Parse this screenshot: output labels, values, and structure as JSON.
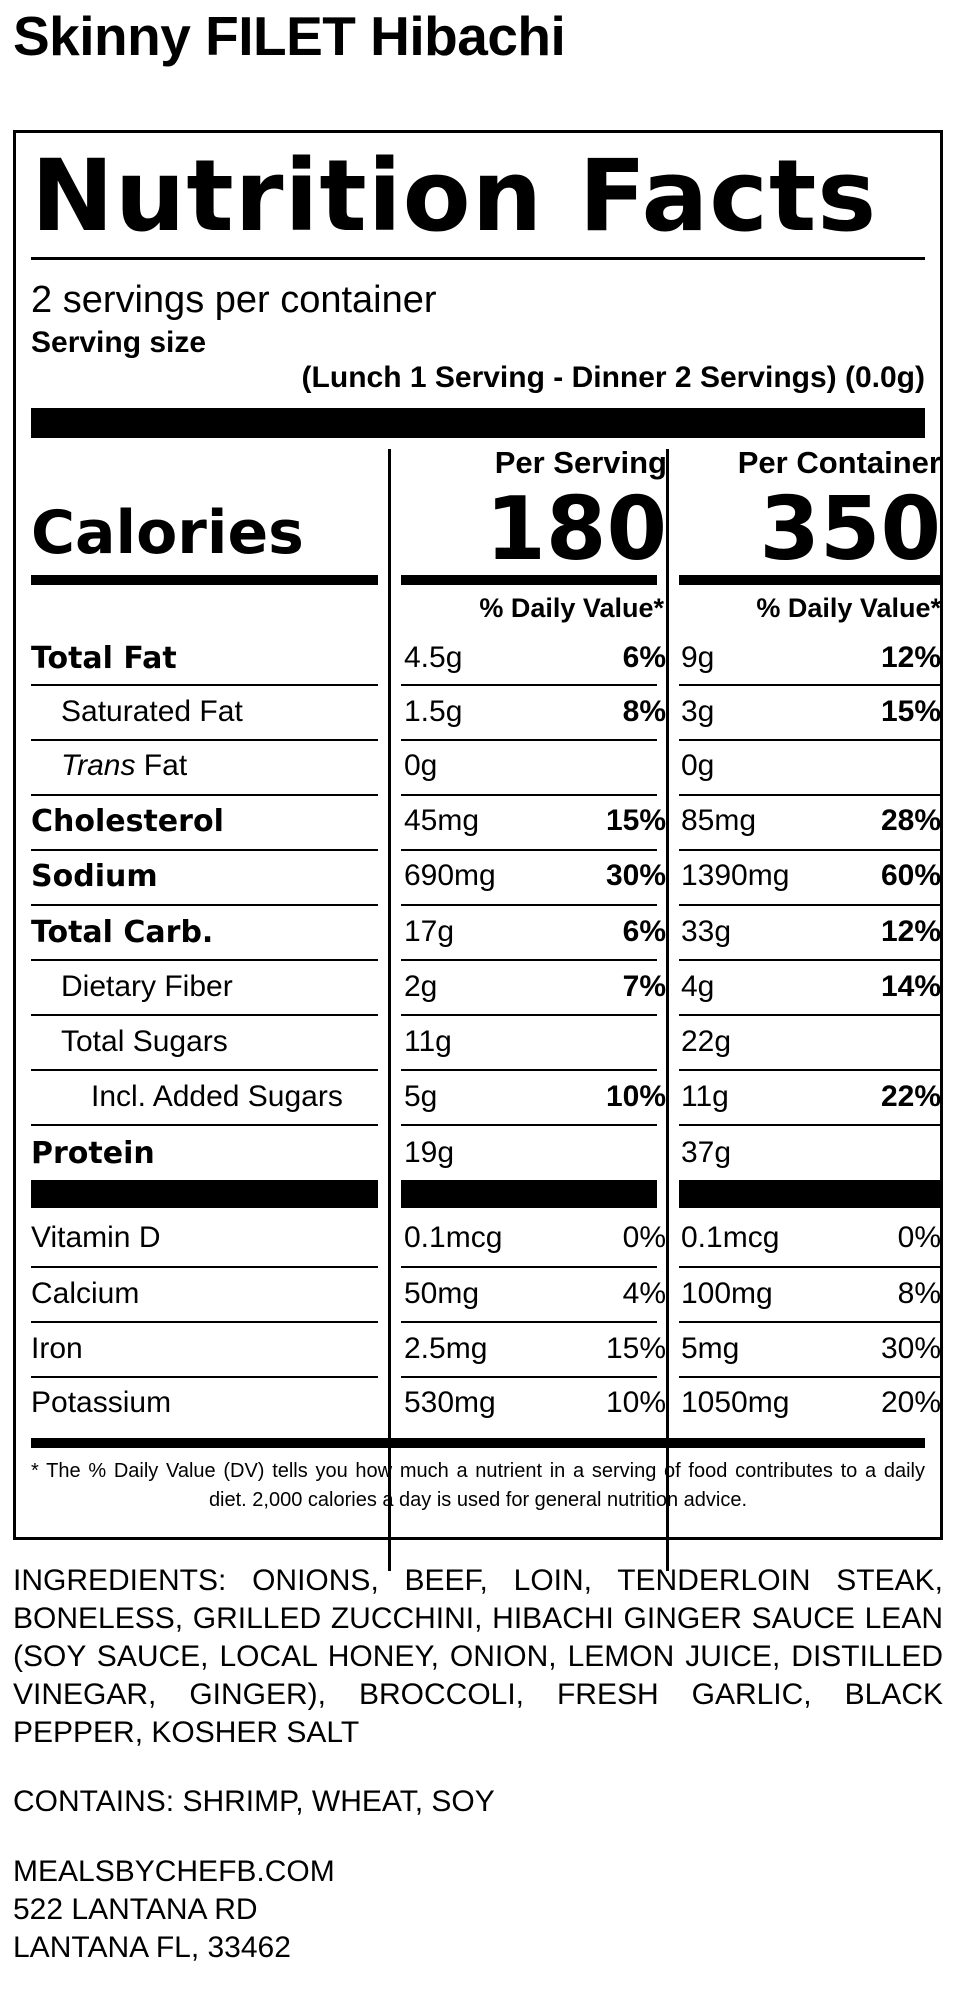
{
  "product_title": "Skinny FILET Hibachi",
  "label": {
    "heading": "Nutrition Facts",
    "servings_per_container": "2 servings per container",
    "serving_size_label": "Serving size",
    "serving_size_value": "(Lunch 1 Serving - Dinner 2 Servings) (0.0g)",
    "per_serving_header": "Per Serving",
    "per_container_header": "Per Container",
    "calories_label": "Calories",
    "calories_per_serving": "180",
    "calories_per_container": "350",
    "daily_value_header": "% Daily Value*",
    "nutrients": [
      {
        "name": "Total Fat",
        "amt1": "4.5g",
        "pct1": "6%",
        "amt2": "9g",
        "pct2": "12%"
      },
      {
        "name": "Saturated Fat",
        "amt1": "1.5g",
        "pct1": "8%",
        "amt2": "3g",
        "pct2": "15%"
      },
      {
        "name_italic": "Trans",
        "name_rest": " Fat",
        "amt1": "0g",
        "pct1": "",
        "amt2": "0g",
        "pct2": ""
      },
      {
        "name": "Cholesterol",
        "amt1": "45mg",
        "pct1": "15%",
        "amt2": "85mg",
        "pct2": "28%"
      },
      {
        "name": "Sodium",
        "amt1": "690mg",
        "pct1": "30%",
        "amt2": "1390mg",
        "pct2": "60%"
      },
      {
        "name": "Total Carb.",
        "amt1": "17g",
        "pct1": "6%",
        "amt2": "33g",
        "pct2": "12%"
      },
      {
        "name": "Dietary Fiber",
        "amt1": "2g",
        "pct1": "7%",
        "amt2": "4g",
        "pct2": "14%"
      },
      {
        "name": "Total Sugars",
        "amt1": "11g",
        "pct1": "",
        "amt2": "22g",
        "pct2": ""
      },
      {
        "name": "Incl. Added Sugars",
        "amt1": "5g",
        "pct1": "10%",
        "amt2": "11g",
        "pct2": "22%"
      },
      {
        "name": "Protein",
        "amt1": "19g",
        "pct1": "",
        "amt2": "37g",
        "pct2": ""
      }
    ],
    "vitamins": [
      {
        "name": "Vitamin D",
        "amt1": "0.1mcg",
        "pct1": "0%",
        "amt2": "0.1mcg",
        "pct2": "0%"
      },
      {
        "name": "Calcium",
        "amt1": "50mg",
        "pct1": "4%",
        "amt2": "100mg",
        "pct2": "8%"
      },
      {
        "name": "Iron",
        "amt1": "2.5mg",
        "pct1": "15%",
        "amt2": "5mg",
        "pct2": "30%"
      },
      {
        "name": "Potassium",
        "amt1": "530mg",
        "pct1": "10%",
        "amt2": "1050mg",
        "pct2": "20%"
      }
    ],
    "footnote": "* The % Daily Value (DV) tells you how much a nutrient in a serving of food contributes to a daily diet. 2,000 calories a day is used for general nutrition advice."
  },
  "ingredients": "INGREDIENTS: ONIONS, BEEF, LOIN, TENDERLOIN STEAK, BONELESS, GRILLED ZUCCHINI, HIBACHI GINGER SAUCE LEAN (SOY SAUCE, LOCAL HONEY, ONION, LEMON JUICE, DISTILLED VINEGAR, GINGER), BROCCOLI, FRESH GARLIC, BLACK PEPPER, KOSHER SALT",
  "contains": "CONTAINS: SHRIMP, WHEAT, SOY",
  "address": {
    "website": "MEALSBYCHEFB.COM",
    "street": "522 LANTANA RD",
    "city": "LANTANA FL, 33462"
  }
}
